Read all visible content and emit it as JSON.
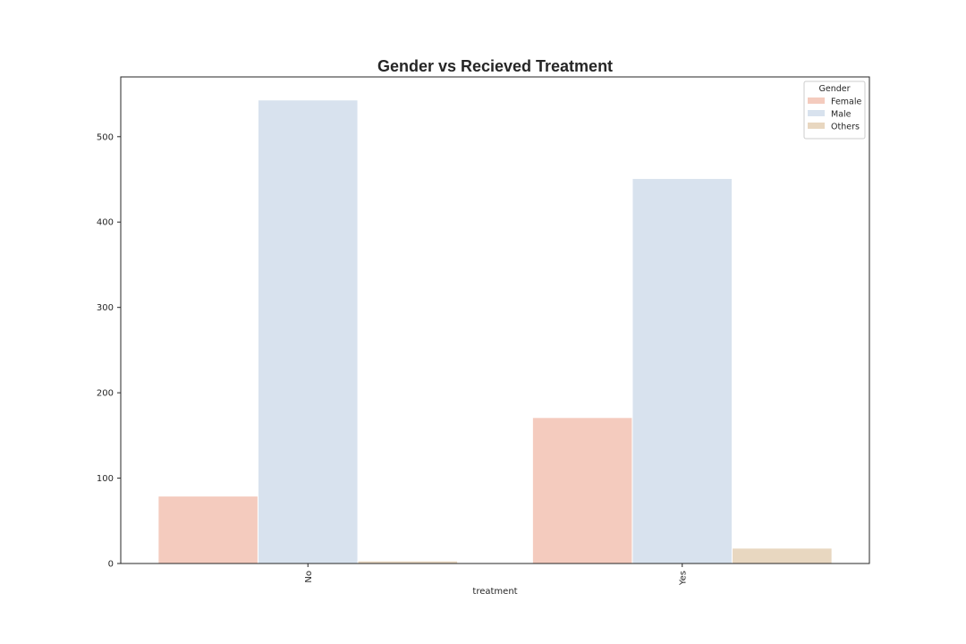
{
  "chart_data": {
    "type": "bar",
    "title": "Gender vs Recieved Treatment",
    "xlabel": "treatment",
    "ylabel": "",
    "categories": [
      "No",
      "Yes"
    ],
    "series": [
      {
        "name": "Female",
        "color": "#f4cbbe",
        "values": [
          79,
          171
        ]
      },
      {
        "name": "Male",
        "color": "#d8e2ee",
        "values": [
          543,
          451
        ]
      },
      {
        "name": "Others",
        "color": "#e8d7c0",
        "values": [
          3,
          18
        ]
      }
    ],
    "ylim": [
      0,
      570
    ],
    "yticks": [
      0,
      100,
      200,
      300,
      400,
      500
    ],
    "x_tick_rotation": "vertical",
    "legend": {
      "title": "Gender",
      "placement": "top-right"
    },
    "grid": false
  }
}
